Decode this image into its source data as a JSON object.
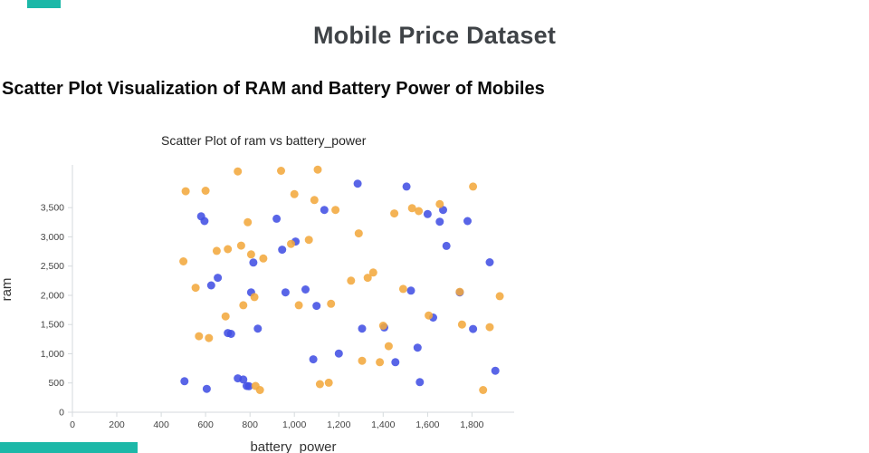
{
  "page": {
    "title": "Mobile Price Dataset",
    "subtitle": "Scatter Plot Visualization of RAM and Battery Power of Mobiles"
  },
  "accent": {
    "teal": "#1cb8a8"
  },
  "chart_data": {
    "type": "scatter",
    "title": "Scatter Plot of ram vs battery_power",
    "xlabel": "battery_power",
    "ylabel": "ram",
    "xlim": [
      0,
      1990
    ],
    "ylim": [
      0,
      4200
    ],
    "xticks": [
      0,
      200,
      400,
      600,
      800,
      1000,
      1200,
      1400,
      1600,
      1800
    ],
    "yticks": [
      0,
      500,
      1000,
      1500,
      2000,
      2500,
      3000,
      3500
    ],
    "grid": false,
    "legend": "none",
    "axis_color": "#d5dadd",
    "tick_label_color": "#444444",
    "series": [
      {
        "name": "series-blue",
        "color": "#4250e4",
        "points": [
          [
            505,
            530
          ],
          [
            580,
            3350
          ],
          [
            595,
            3270
          ],
          [
            605,
            400
          ],
          [
            625,
            2170
          ],
          [
            655,
            2300
          ],
          [
            700,
            1355
          ],
          [
            715,
            1340
          ],
          [
            745,
            580
          ],
          [
            770,
            560
          ],
          [
            785,
            450
          ],
          [
            795,
            445
          ],
          [
            805,
            2050
          ],
          [
            815,
            2560
          ],
          [
            835,
            1430
          ],
          [
            920,
            3310
          ],
          [
            945,
            2780
          ],
          [
            960,
            2050
          ],
          [
            1005,
            2920
          ],
          [
            1050,
            2100
          ],
          [
            1085,
            905
          ],
          [
            1100,
            1820
          ],
          [
            1135,
            3460
          ],
          [
            1200,
            1005
          ],
          [
            1285,
            3910
          ],
          [
            1305,
            1430
          ],
          [
            1405,
            1450
          ],
          [
            1455,
            855
          ],
          [
            1505,
            3860
          ],
          [
            1525,
            2080
          ],
          [
            1555,
            1105
          ],
          [
            1565,
            515
          ],
          [
            1600,
            3390
          ],
          [
            1625,
            1620
          ],
          [
            1655,
            3260
          ],
          [
            1670,
            3460
          ],
          [
            1685,
            2845
          ],
          [
            1745,
            2050
          ],
          [
            1780,
            3270
          ],
          [
            1805,
            1425
          ],
          [
            1880,
            2565
          ],
          [
            1905,
            710
          ]
        ]
      },
      {
        "name": "series-orange",
        "color": "#f3a93d",
        "points": [
          [
            500,
            2580
          ],
          [
            510,
            3780
          ],
          [
            555,
            2130
          ],
          [
            570,
            1300
          ],
          [
            600,
            3790
          ],
          [
            615,
            1270
          ],
          [
            650,
            2760
          ],
          [
            690,
            1640
          ],
          [
            700,
            2790
          ],
          [
            745,
            4120
          ],
          [
            760,
            2850
          ],
          [
            770,
            1830
          ],
          [
            790,
            3250
          ],
          [
            805,
            2700
          ],
          [
            820,
            1970
          ],
          [
            825,
            450
          ],
          [
            845,
            380
          ],
          [
            860,
            2630
          ],
          [
            940,
            4130
          ],
          [
            985,
            2880
          ],
          [
            1000,
            3730
          ],
          [
            1020,
            1830
          ],
          [
            1065,
            2950
          ],
          [
            1090,
            3630
          ],
          [
            1105,
            4150
          ],
          [
            1115,
            480
          ],
          [
            1155,
            505
          ],
          [
            1165,
            1855
          ],
          [
            1185,
            3460
          ],
          [
            1255,
            2250
          ],
          [
            1290,
            3060
          ],
          [
            1305,
            880
          ],
          [
            1330,
            2300
          ],
          [
            1355,
            2390
          ],
          [
            1385,
            855
          ],
          [
            1400,
            1480
          ],
          [
            1425,
            1130
          ],
          [
            1450,
            3400
          ],
          [
            1490,
            2110
          ],
          [
            1530,
            3490
          ],
          [
            1560,
            3440
          ],
          [
            1605,
            1655
          ],
          [
            1655,
            3560
          ],
          [
            1745,
            2060
          ],
          [
            1755,
            1500
          ],
          [
            1805,
            3860
          ],
          [
            1850,
            380
          ],
          [
            1880,
            1455
          ],
          [
            1925,
            1985
          ]
        ]
      }
    ]
  }
}
